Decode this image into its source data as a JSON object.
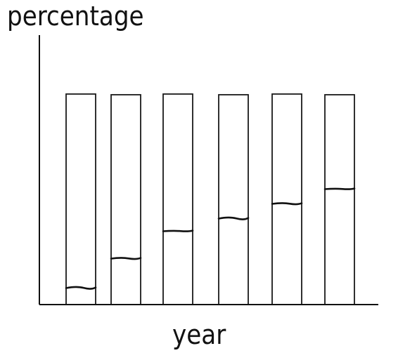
{
  "chart_data": {
    "type": "bar",
    "ylabel": "percentage",
    "xlabel": "year",
    "categories": [
      "",
      "",
      "",
      "",
      "",
      ""
    ],
    "values": [
      8,
      22,
      35,
      41,
      48,
      55
    ],
    "ylim": [
      0,
      100
    ],
    "grid": false,
    "legend": "none"
  }
}
